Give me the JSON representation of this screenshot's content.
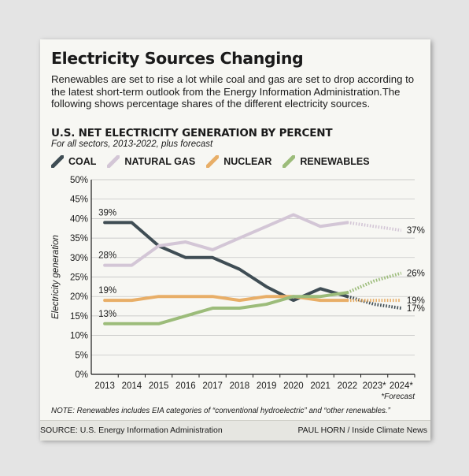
{
  "header": {
    "title": "Electricity Sources Changing",
    "description": "Renewables are set to rise a lot while coal and gas are set to drop according to the latest short-term outlook from the Energy Information Administration.The following shows percentage shares of the different electricity sources.",
    "subtitle": "U.S. NET ELECTRICITY GENERATION BY PERCENT",
    "subnote": "For all sectors, 2013-2022, plus forecast"
  },
  "footer": {
    "note": "NOTE:  Renewables includes EIA categories of “conventional hydroelectric” and “other renewables.”",
    "source": "SOURCE: U.S. Energy Information Administration",
    "credit": "PAUL HORN / Inside Climate News"
  },
  "chart_data": {
    "type": "line",
    "title": "U.S. NET ELECTRICITY GENERATION BY PERCENT",
    "subtitle": "For all sectors, 2013-2022, plus forecast",
    "ylabel": "Electricity generation",
    "xlabel": "",
    "categories": [
      "2013",
      "2014",
      "2015",
      "2016",
      "2017",
      "2018",
      "2019",
      "2020",
      "2021",
      "2022",
      "2023*",
      "2024*"
    ],
    "forecast_note": "*Forecast",
    "forecast_start_index": 9,
    "ylim": [
      0,
      50
    ],
    "yticks": [
      "0%",
      "5%",
      "10%",
      "15%",
      "20%",
      "25%",
      "30%",
      "35%",
      "40%",
      "45%",
      "50%"
    ],
    "grid": "horizontal",
    "legend_position": "top-left",
    "series": [
      {
        "name": "COAL",
        "color": "#3f4d54",
        "values": [
          39,
          39,
          33,
          30,
          30,
          27,
          22.5,
          19,
          22,
          20,
          18,
          17
        ],
        "labels": {
          "0": "39%",
          "11": "17%"
        }
      },
      {
        "name": "NATURAL GAS",
        "color": "#d3c6d6",
        "values": [
          28,
          28,
          33,
          34,
          32,
          35,
          38,
          41,
          38,
          39,
          38,
          37
        ],
        "labels": {
          "0": "28%",
          "11": "37%"
        }
      },
      {
        "name": "NUCLEAR",
        "color": "#e8ae67",
        "values": [
          19,
          19,
          20,
          20,
          20,
          19,
          20,
          20,
          19,
          19,
          19,
          19
        ],
        "labels": {
          "0": "19%",
          "11": "19%"
        }
      },
      {
        "name": "RENEWABLES",
        "color": "#9cbc7a",
        "values": [
          13,
          13,
          13,
          15,
          17,
          17,
          18,
          20,
          20,
          21,
          24,
          26
        ],
        "labels": {
          "0": "13%",
          "11": "26%"
        }
      }
    ]
  }
}
